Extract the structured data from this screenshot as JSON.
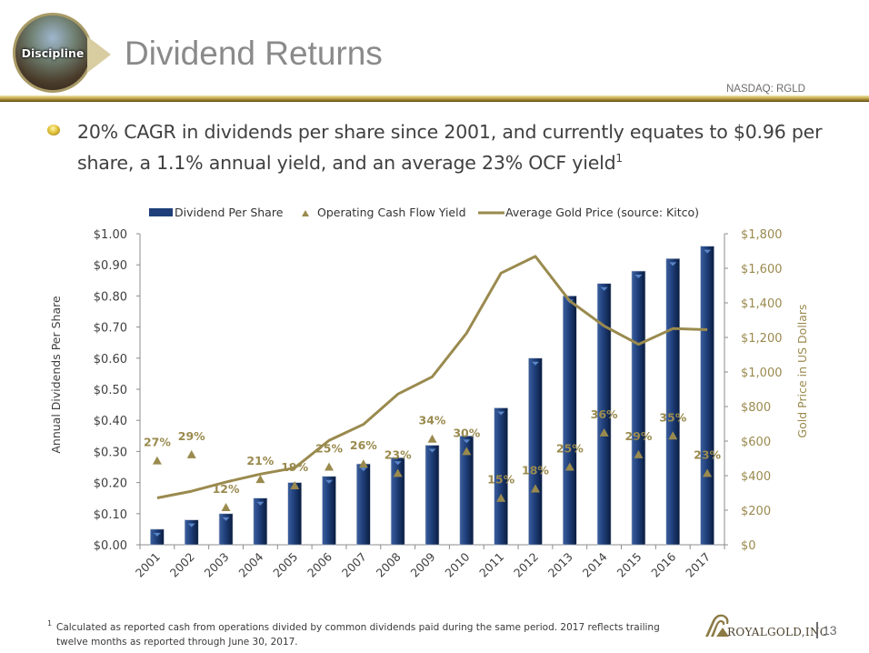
{
  "header": {
    "section_badge": "Discipline",
    "title": "Dividend Returns",
    "ticker": "NASDAQ: RGLD"
  },
  "headline": {
    "text": "20% CAGR in dividends per share since 2001, and currently equates to $0.96 per share, a 1.1% annual yield, and an average 23% OCF yield",
    "footnote_ref": "1"
  },
  "footer": {
    "footnote_mark": "1",
    "footnote_text": "Calculated as  reported cash from operations  divided by common dividends paid during the same period.  2017 reflects trailing twelve months as reported through June 30, 2017.",
    "company": "ROYALGOLD,INC",
    "page_number": "13"
  },
  "colors": {
    "bar": "#1f3f7a",
    "gold": "#9a8a4e",
    "axis_text": "#3f3f3f",
    "gold_text": "#9a8a4e"
  },
  "chart_data": {
    "type": "bar",
    "title": "",
    "legend": [
      "Dividend Per Share",
      "Operating Cash Flow Yield",
      "Average Gold Price (source: Kitco)"
    ],
    "legend_position": "top",
    "categories": [
      "2001",
      "2002",
      "2003",
      "2004",
      "2005",
      "2006",
      "2007",
      "2008",
      "2009",
      "2010",
      "2011",
      "2012",
      "2013",
      "2014",
      "2015",
      "2016",
      "2017"
    ],
    "ylabel": "Annual Dividends Per Share",
    "y2label": "Gold Price in US Dollars",
    "ylim": [
      0,
      1.0
    ],
    "y2lim": [
      0,
      1800
    ],
    "yticks": [
      "$0.00",
      "$0.10",
      "$0.20",
      "$0.30",
      "$0.40",
      "$0.50",
      "$0.60",
      "$0.70",
      "$0.80",
      "$0.90",
      "$1.00"
    ],
    "y2ticks": [
      "$0",
      "$200",
      "$400",
      "$600",
      "$800",
      "$1,000",
      "$1,200",
      "$1,400",
      "$1,600",
      "$1,800"
    ],
    "grid": false,
    "series": [
      {
        "name": "Dividend Per Share",
        "type": "bar",
        "axis": "left",
        "values": [
          0.05,
          0.08,
          0.1,
          0.15,
          0.2,
          0.22,
          0.26,
          0.28,
          0.32,
          0.35,
          0.44,
          0.6,
          0.8,
          0.84,
          0.88,
          0.92,
          0.96
        ]
      },
      {
        "name": "Operating Cash Flow Yield",
        "type": "scatter",
        "marker": "triangle",
        "axis": "left",
        "values": [
          27,
          29,
          12,
          21,
          19,
          25,
          26,
          23,
          34,
          30,
          15,
          18,
          25,
          36,
          29,
          35,
          23
        ],
        "labels": [
          "27%",
          "29%",
          "12%",
          "21%",
          "19%",
          "25%",
          "26%",
          "23%",
          "34%",
          "30%",
          "15%",
          "18%",
          "25%",
          "36%",
          "29%",
          "35%",
          "23%"
        ]
      },
      {
        "name": "Average Gold Price (source: Kitco)",
        "type": "line",
        "axis": "right",
        "values": [
          271,
          310,
          363,
          409,
          445,
          604,
          697,
          872,
          972,
          1225,
          1572,
          1669,
          1411,
          1266,
          1160,
          1251,
          1245
        ]
      }
    ]
  }
}
